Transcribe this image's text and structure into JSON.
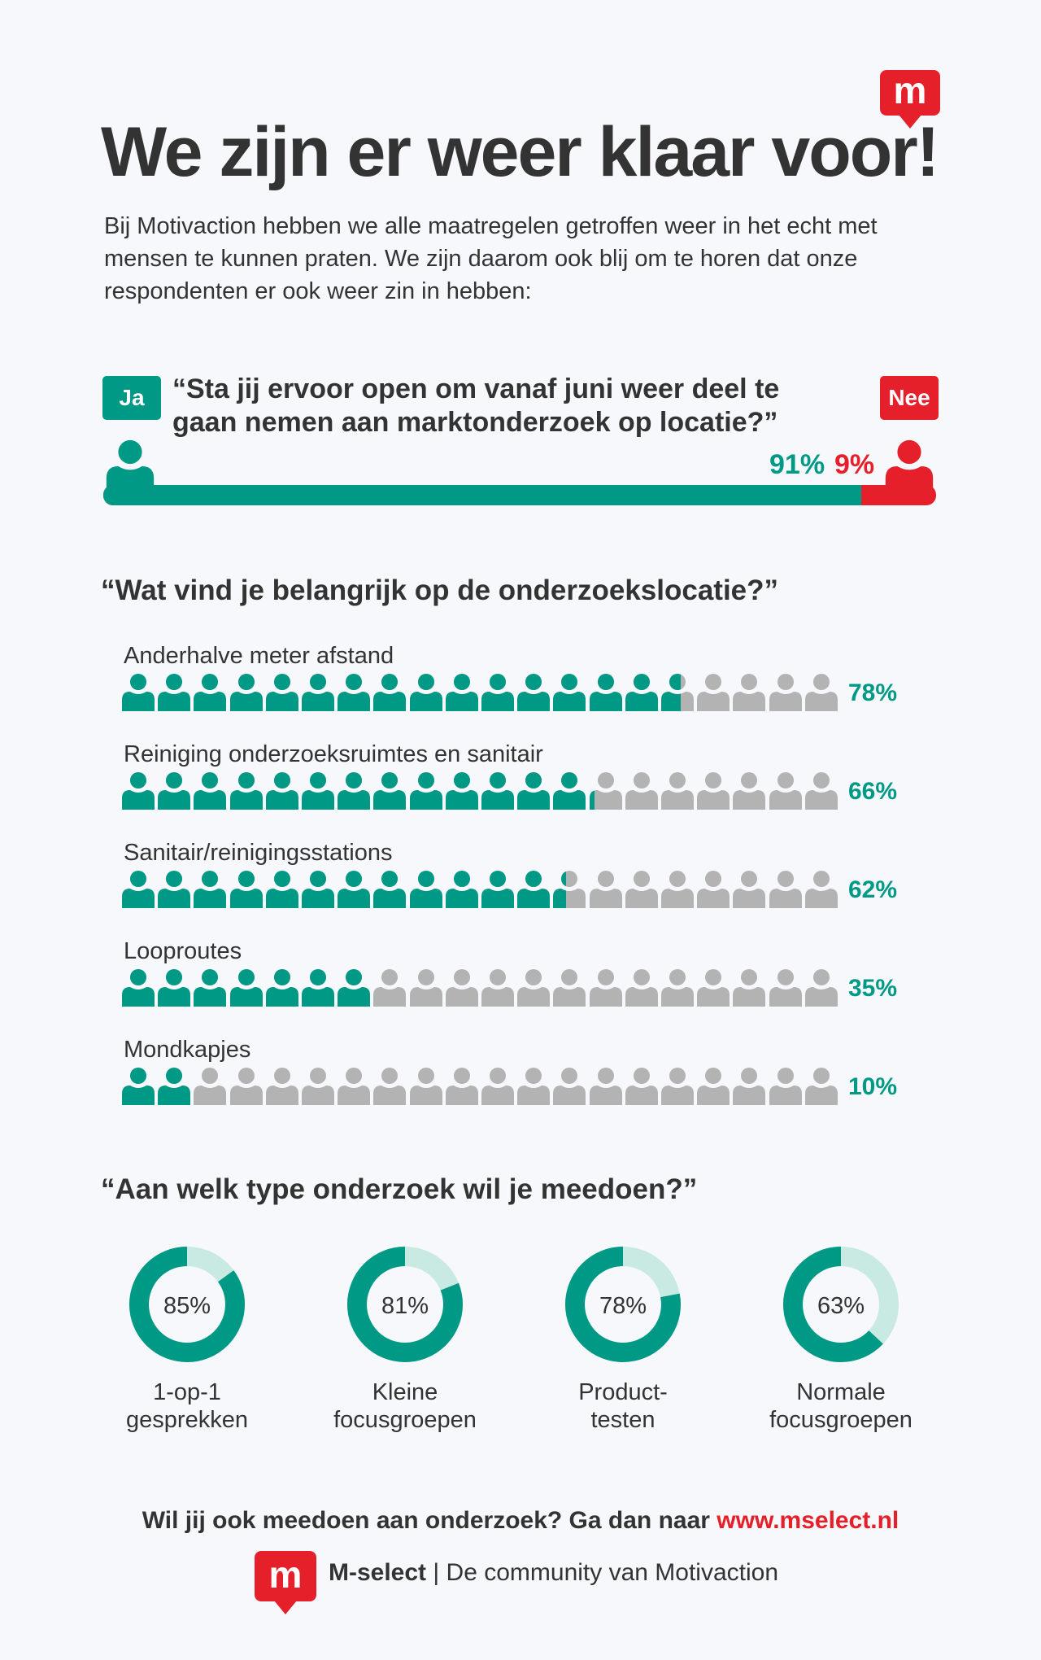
{
  "logo_letter": "m",
  "title": "We zijn er weer klaar voor!",
  "intro": "Bij Motivaction hebben we alle maatregelen getroffen weer in het echt met mensen te kunnen praten. We zijn daarom ook blij om te horen dat onze respondenten er ook weer zin in hebben:",
  "q1": {
    "question": "“Sta jij ervoor open om vanaf juni weer deel te gaan nemen aan marktonderzoek op locatie?”",
    "yes_label": "Ja",
    "no_label": "Nee",
    "yes_pct": 91,
    "no_pct": 9,
    "yes_text": "91%",
    "no_text": "9%"
  },
  "q2": {
    "question": "“Wat vind je belangrijk op de onderzoekslocatie?”",
    "items": [
      {
        "label": "Anderhalve meter afstand",
        "pct": 78,
        "text": "78%"
      },
      {
        "label": "Reiniging onderzoeksruimtes en sanitair",
        "pct": 66,
        "text": "66%"
      },
      {
        "label": "Sanitair/reinigingsstations",
        "pct": 62,
        "text": "62%"
      },
      {
        "label": "Looproutes",
        "pct": 35,
        "text": "35%"
      },
      {
        "label": "Mondkapjes",
        "pct": 10,
        "text": "10%"
      }
    ]
  },
  "q3": {
    "question": "“Aan welk type onderzoek wil je meedoen?”",
    "items": [
      {
        "pct": 85,
        "text": "85%",
        "line1": "1-op-1",
        "line2": "gesprekken"
      },
      {
        "pct": 81,
        "text": "81%",
        "line1": "Kleine",
        "line2": "focusgroepen"
      },
      {
        "pct": 78,
        "text": "78%",
        "line1": "Product-",
        "line2": "testen"
      },
      {
        "pct": 63,
        "text": "63%",
        "line1": "Normale",
        "line2": "focusgroepen"
      }
    ]
  },
  "footer": {
    "cta": "Wil jij ook meedoen aan onderzoek? Ga dan naar",
    "url": "www.mselect.nl",
    "brand": "M-select",
    "separator": "|",
    "tagline": "De community van Motivaction"
  },
  "colors": {
    "teal": "#009985",
    "red": "#e5202a",
    "gray": "#b3b3b3",
    "light_teal": "#c9e9e3"
  }
}
